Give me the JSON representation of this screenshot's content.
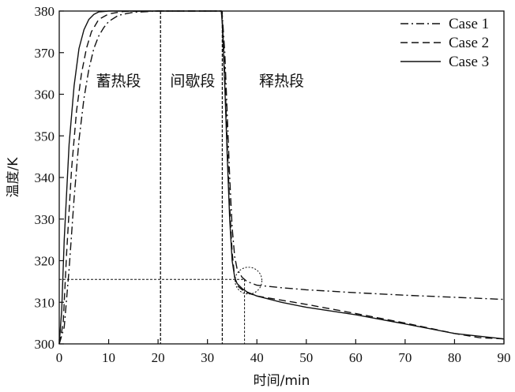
{
  "chart_data": {
    "type": "line",
    "xlabel": "时间/min",
    "ylabel": "温度/K",
    "xlim": [
      0,
      90
    ],
    "ylim": [
      300,
      380
    ],
    "xticks": [
      0,
      10,
      20,
      30,
      40,
      50,
      60,
      70,
      80,
      90
    ],
    "yticks": [
      300,
      310,
      320,
      330,
      340,
      350,
      360,
      370,
      380
    ],
    "grid": false,
    "legend_position": "top-right",
    "phases": [
      {
        "label": "蓄热段",
        "x": 12
      },
      {
        "label": "间歇段",
        "x": 27
      },
      {
        "label": "释热段",
        "x": 45
      }
    ],
    "phase_boundaries": [
      20.5,
      33
    ],
    "reference_lines": {
      "y": 315.5,
      "x_end": 37.5
    },
    "series": [
      {
        "name": "Case 1",
        "style": "dashdot",
        "points": [
          [
            0,
            300
          ],
          [
            1,
            304
          ],
          [
            2,
            318
          ],
          [
            3,
            335
          ],
          [
            4,
            349
          ],
          [
            5,
            359
          ],
          [
            6,
            366
          ],
          [
            7,
            371
          ],
          [
            8,
            374
          ],
          [
            9,
            376
          ],
          [
            10,
            377.5
          ],
          [
            12,
            379
          ],
          [
            15,
            379.7
          ],
          [
            20,
            380
          ],
          [
            30,
            380
          ],
          [
            32.8,
            380
          ],
          [
            33,
            379
          ],
          [
            33.5,
            370
          ],
          [
            34,
            355
          ],
          [
            34.5,
            340
          ],
          [
            35,
            328
          ],
          [
            35.5,
            321
          ],
          [
            36,
            318
          ],
          [
            37,
            316
          ],
          [
            38,
            315
          ],
          [
            40,
            314.1
          ],
          [
            45,
            313.5
          ],
          [
            50,
            313
          ],
          [
            60,
            312.3
          ],
          [
            70,
            311.7
          ],
          [
            80,
            311.2
          ],
          [
            90,
            310.7
          ]
        ]
      },
      {
        "name": "Case 2",
        "style": "dashed",
        "points": [
          [
            0,
            300
          ],
          [
            0.8,
            305
          ],
          [
            1.5,
            322
          ],
          [
            2.5,
            342
          ],
          [
            3.5,
            356
          ],
          [
            4.5,
            365
          ],
          [
            5.5,
            371
          ],
          [
            6.5,
            375
          ],
          [
            8,
            378
          ],
          [
            10,
            379.3
          ],
          [
            13,
            379.9
          ],
          [
            20,
            380
          ],
          [
            30,
            380
          ],
          [
            32.8,
            380
          ],
          [
            33,
            378
          ],
          [
            33.5,
            365
          ],
          [
            34,
            348
          ],
          [
            34.5,
            333
          ],
          [
            35,
            322
          ],
          [
            35.5,
            316
          ],
          [
            36,
            314
          ],
          [
            37,
            313
          ],
          [
            38,
            312.3
          ],
          [
            40,
            311.5
          ],
          [
            45,
            310.5
          ],
          [
            50,
            309.5
          ],
          [
            60,
            307.3
          ],
          [
            70,
            305
          ],
          [
            80,
            302.5
          ],
          [
            85,
            301.5
          ],
          [
            90,
            301.2
          ]
        ]
      },
      {
        "name": "Case 3",
        "style": "solid",
        "points": [
          [
            0,
            300
          ],
          [
            0.5,
            308
          ],
          [
            1,
            325
          ],
          [
            2,
            348
          ],
          [
            3,
            362
          ],
          [
            4,
            371
          ],
          [
            5,
            375.5
          ],
          [
            6,
            378
          ],
          [
            7,
            379.2
          ],
          [
            8,
            379.8
          ],
          [
            10,
            380
          ],
          [
            20,
            380
          ],
          [
            30,
            380
          ],
          [
            32.8,
            380
          ],
          [
            33,
            377
          ],
          [
            33.5,
            362
          ],
          [
            34,
            345
          ],
          [
            34.5,
            330
          ],
          [
            35,
            320
          ],
          [
            35.5,
            316
          ],
          [
            36,
            314.5
          ],
          [
            37,
            313.3
          ],
          [
            38,
            312.5
          ],
          [
            40,
            311.5
          ],
          [
            45,
            310
          ],
          [
            50,
            308.8
          ],
          [
            60,
            307
          ],
          [
            70,
            304.8
          ],
          [
            80,
            302.5
          ],
          [
            90,
            301.2
          ]
        ]
      }
    ]
  }
}
